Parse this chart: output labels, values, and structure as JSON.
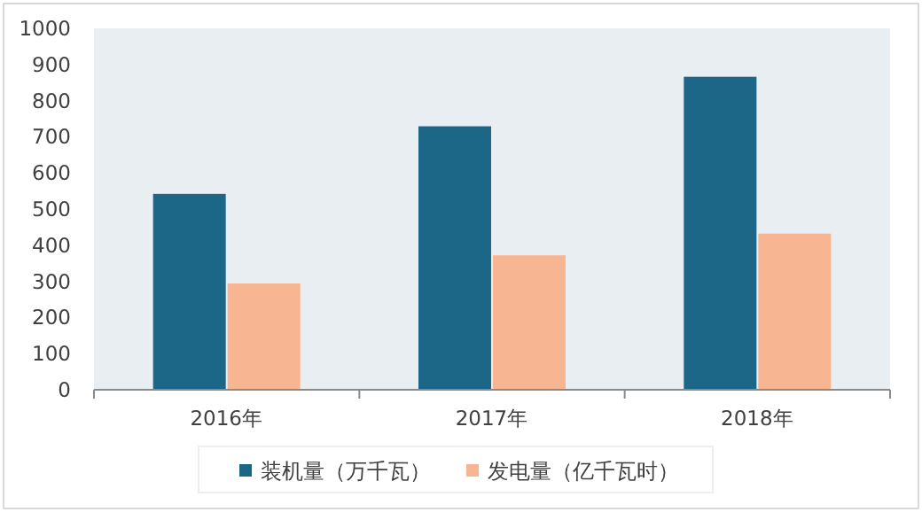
{
  "chart_data": {
    "type": "bar",
    "categories": [
      "2016年",
      "2017年",
      "2018年"
    ],
    "series": [
      {
        "name": "装机量（万千瓦）",
        "color": "#1c6688",
        "values": [
          542,
          729,
          866
        ]
      },
      {
        "name": "发电量（亿千瓦时）",
        "color": "#f8b592",
        "values": [
          294,
          372,
          432
        ]
      }
    ],
    "ylim": [
      0,
      1000
    ],
    "yticks": [
      0,
      100,
      200,
      300,
      400,
      500,
      600,
      700,
      800,
      900,
      1000
    ],
    "legend": "bottom"
  }
}
